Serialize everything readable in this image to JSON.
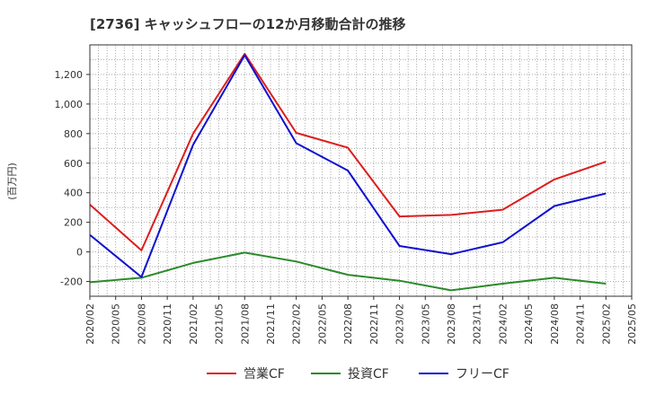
{
  "chart_data": {
    "type": "line",
    "title": "[2736]  キャッシュフローの12か月移動合計の推移",
    "ylabel": "(百万円)",
    "xlabel": "",
    "ylim": [
      -300,
      1400
    ],
    "yticks": [
      -200,
      0,
      200,
      400,
      600,
      800,
      1000,
      1200
    ],
    "ytick_labels": [
      "-200",
      "0",
      "200",
      "400",
      "600",
      "800",
      "1,000",
      "1,200"
    ],
    "categories": [
      "2020/02",
      "2020/05",
      "2020/08",
      "2020/11",
      "2021/02",
      "2021/05",
      "2021/08",
      "2021/11",
      "2022/02",
      "2022/05",
      "2022/08",
      "2022/11",
      "2023/02",
      "2023/05",
      "2023/08",
      "2023/11",
      "2024/02",
      "2024/05",
      "2024/08",
      "2024/11",
      "2025/02",
      "2025/05"
    ],
    "series": [
      {
        "name": "営業CF",
        "color": "#dd1e1e",
        "points": [
          [
            "2020/02",
            320
          ],
          [
            "2020/08",
            10
          ],
          [
            "2021/02",
            800
          ],
          [
            "2021/08",
            1340
          ],
          [
            "2022/02",
            805
          ],
          [
            "2022/08",
            705
          ],
          [
            "2023/02",
            240
          ],
          [
            "2023/08",
            250
          ],
          [
            "2024/02",
            285
          ],
          [
            "2024/08",
            490
          ],
          [
            "2025/02",
            610
          ]
        ]
      },
      {
        "name": "投資CF",
        "color": "#2a8a2a",
        "points": [
          [
            "2020/02",
            -205
          ],
          [
            "2020/08",
            -175
          ],
          [
            "2021/02",
            -75
          ],
          [
            "2021/08",
            -5
          ],
          [
            "2022/02",
            -65
          ],
          [
            "2022/08",
            -155
          ],
          [
            "2023/02",
            -195
          ],
          [
            "2023/08",
            -260
          ],
          [
            "2024/02",
            -215
          ],
          [
            "2024/08",
            -175
          ],
          [
            "2025/02",
            -215
          ]
        ]
      },
      {
        "name": "フリーCF",
        "color": "#1010d0",
        "points": [
          [
            "2020/02",
            115
          ],
          [
            "2020/08",
            -170
          ],
          [
            "2021/02",
            725
          ],
          [
            "2021/08",
            1330
          ],
          [
            "2022/02",
            735
          ],
          [
            "2022/08",
            550
          ],
          [
            "2023/02",
            40
          ],
          [
            "2023/08",
            -15
          ],
          [
            "2024/02",
            65
          ],
          [
            "2024/08",
            310
          ],
          [
            "2025/02",
            395
          ]
        ]
      }
    ]
  }
}
